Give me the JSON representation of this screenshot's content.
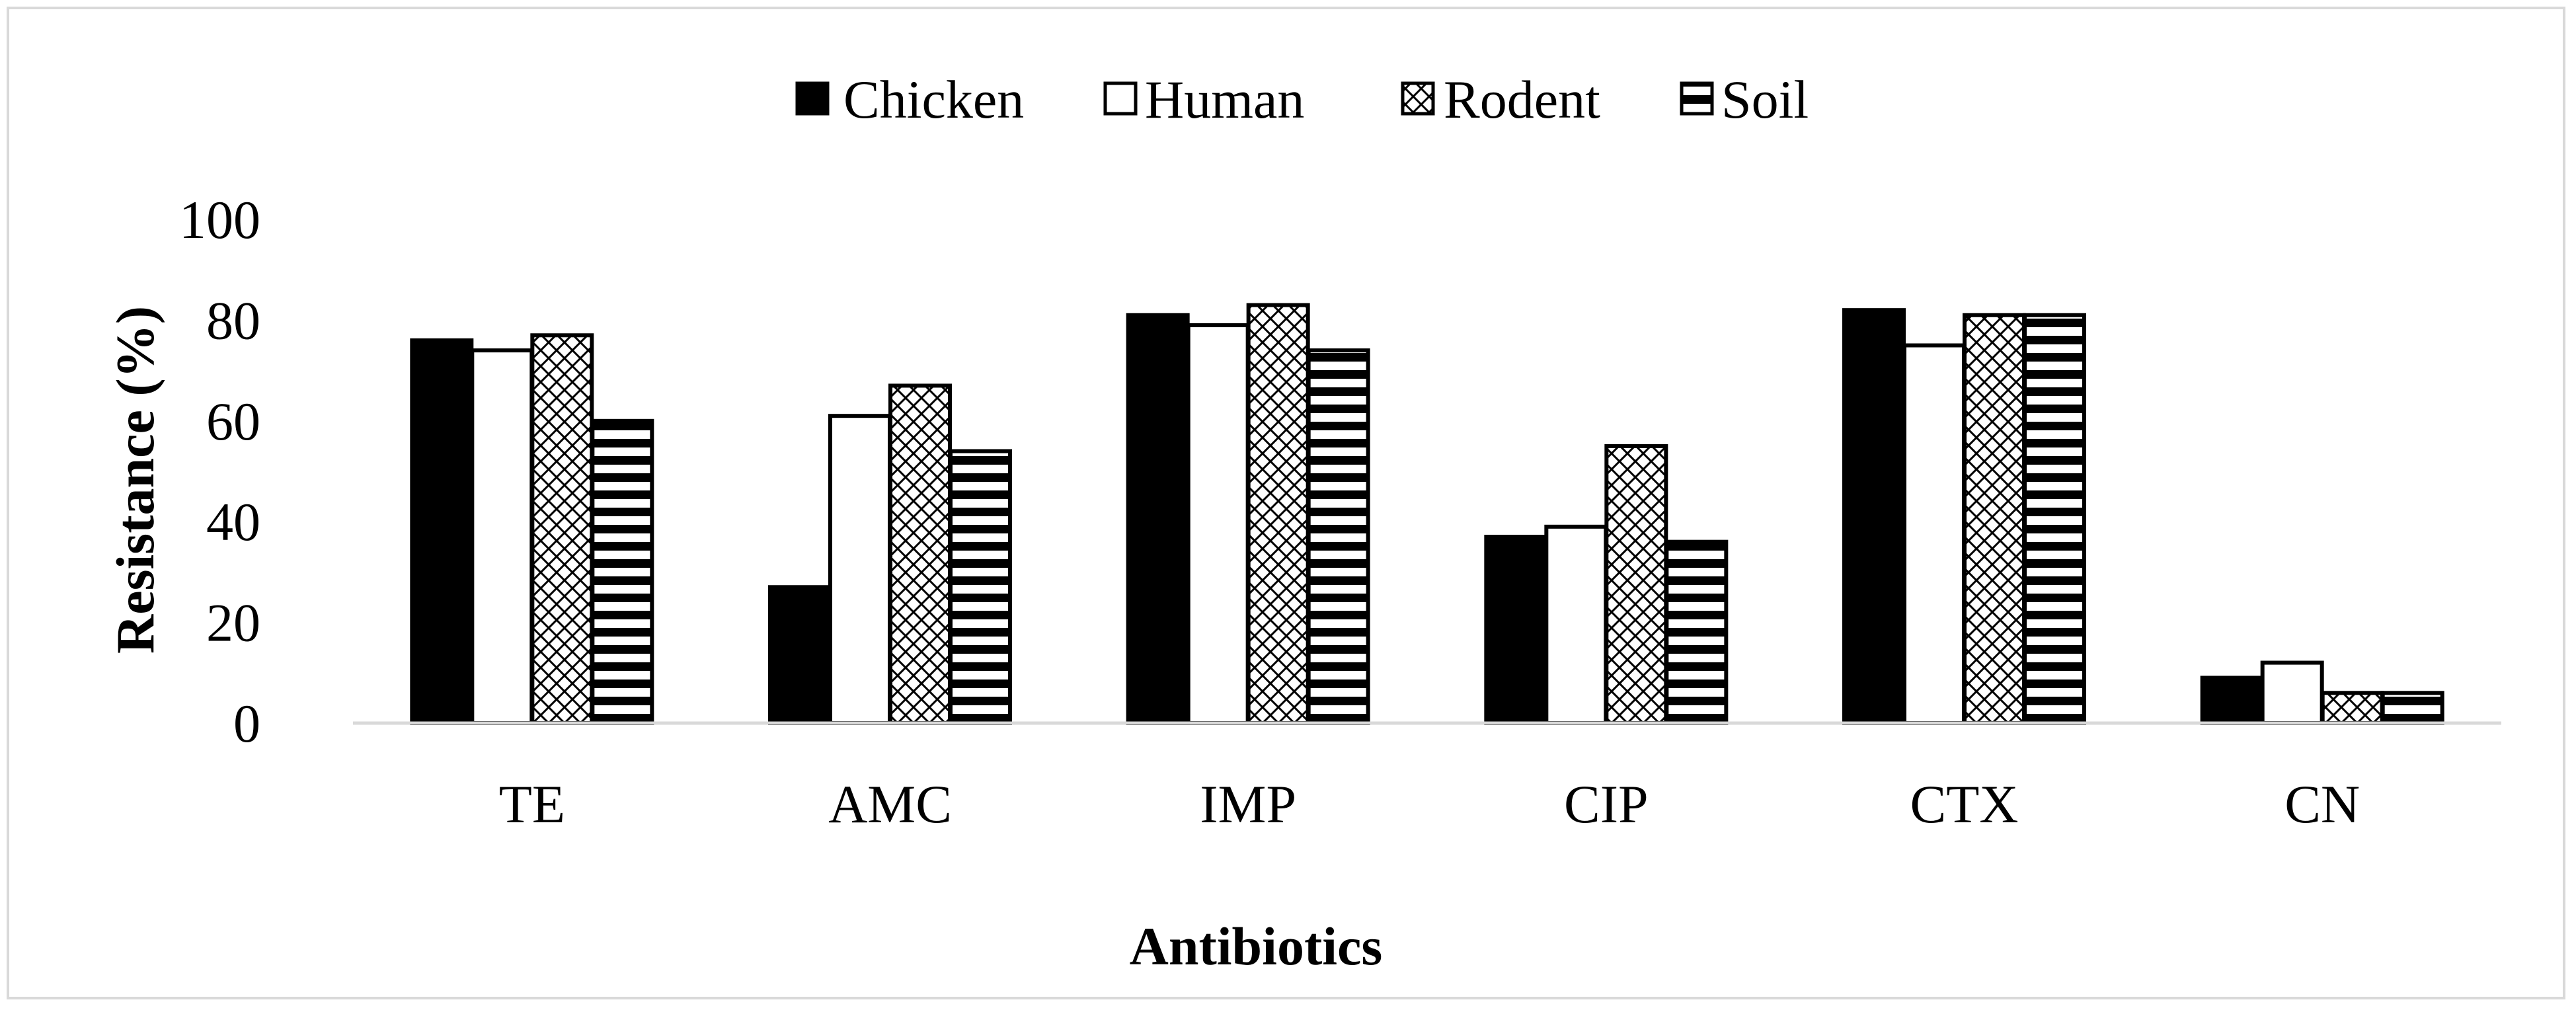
{
  "chart_data": {
    "type": "bar",
    "title": "",
    "xlabel": "Antibiotics",
    "ylabel": "Resistance (%)",
    "ylim": [
      0,
      100
    ],
    "yticks": [
      0,
      20,
      40,
      60,
      80,
      100
    ],
    "grid": false,
    "legend_position": "top-center",
    "categories": [
      "TE",
      "AMC",
      "IMP",
      "CIP",
      "CTX",
      "CN"
    ],
    "series": [
      {
        "name": "Chicken",
        "pattern": "solid-black",
        "values": [
          76,
          27,
          81,
          37,
          82,
          9
        ]
      },
      {
        "name": "Human",
        "pattern": "white",
        "values": [
          74,
          61,
          79,
          39,
          75,
          12
        ]
      },
      {
        "name": "Rodent",
        "pattern": "crosshatch",
        "values": [
          77,
          67,
          83,
          55,
          81,
          6
        ]
      },
      {
        "name": "Soil",
        "pattern": "horizontal-stripes",
        "values": [
          60,
          54,
          74,
          36,
          81,
          6
        ]
      }
    ]
  }
}
